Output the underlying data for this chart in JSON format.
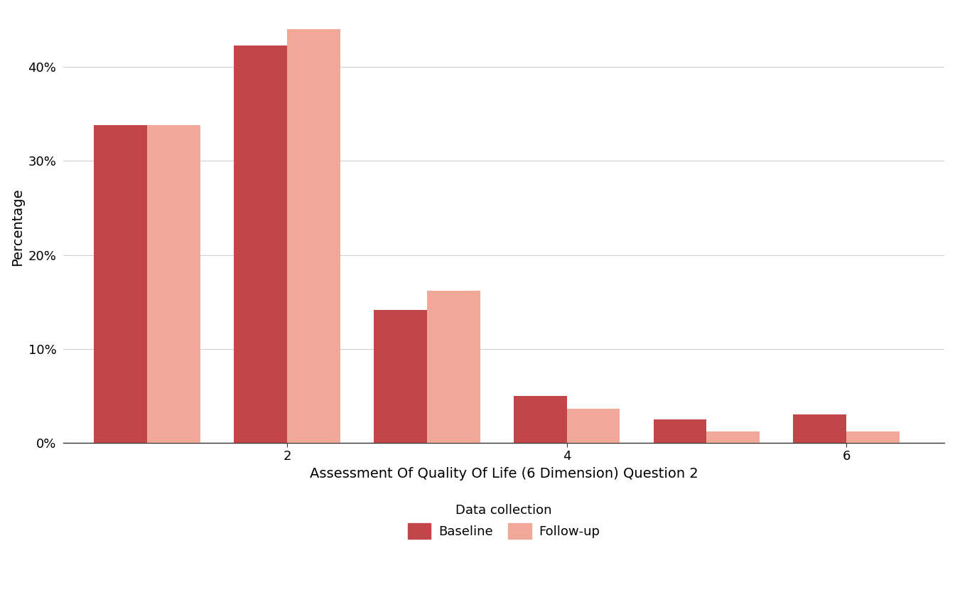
{
  "categories": [
    1,
    2,
    3,
    4,
    5,
    6
  ],
  "baseline": [
    33.8,
    42.3,
    14.1,
    5.0,
    2.5,
    3.0
  ],
  "followup": [
    33.8,
    44.0,
    16.2,
    3.6,
    1.2,
    1.2
  ],
  "baseline_color": "#c1464a",
  "followup_color": "#f0a898",
  "xlabel": "Assessment Of Quality Of Life (6 Dimension) Question 2",
  "ylabel": "Percentage",
  "xticks": [
    2,
    4,
    6
  ],
  "yticks": [
    0,
    10,
    20,
    30,
    40
  ],
  "yticklabels": [
    "0%",
    "10%",
    "20%",
    "30%",
    "40%"
  ],
  "legend_title": "Data collection",
  "legend_baseline": "Baseline",
  "legend_followup": "Follow-up",
  "bar_width": 0.38,
  "background_color": "#ffffff",
  "grid_color": "#d0d0d0",
  "axis_fontsize": 14,
  "tick_fontsize": 13,
  "legend_fontsize": 13,
  "xlim": [
    0.4,
    6.7
  ],
  "ylim": [
    0,
    46
  ]
}
